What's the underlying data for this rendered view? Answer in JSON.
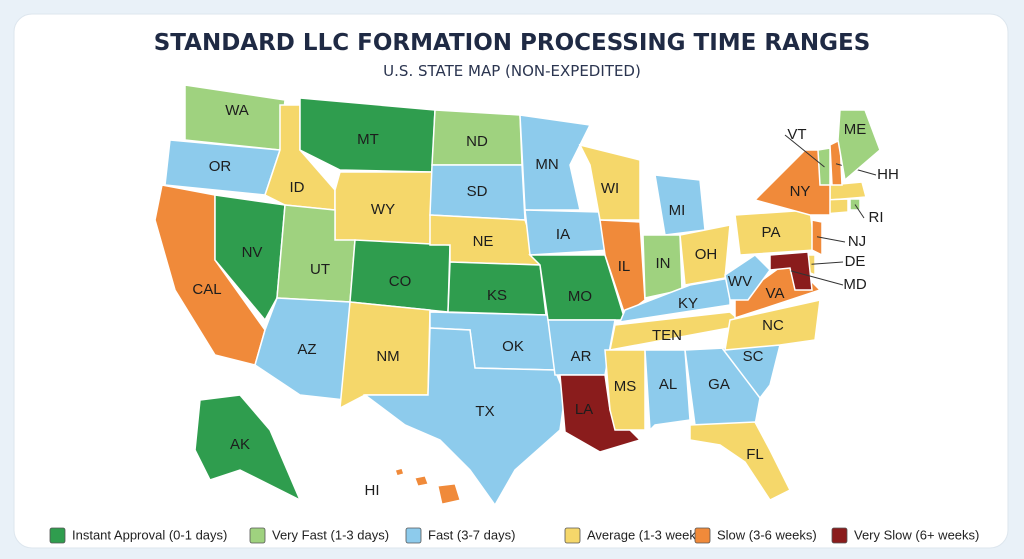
{
  "header": {
    "title": "STANDARD LLC FORMATION PROCESSING TIME RANGES",
    "subtitle": "U.S. STATE MAP (NON-EXPEDITED)"
  },
  "legend": [
    {
      "label": "Instant Approval (0-1 days)",
      "color": "#2f9d4e"
    },
    {
      "label": "Very Fast (1-3 days)",
      "color": "#9fd27f"
    },
    {
      "label": "Fast (3-7 days)",
      "color": "#8dcbec"
    },
    {
      "label": "Average (1-3 weeks)",
      "color": "#f5d76a"
    },
    {
      "label": "Slow (3-6 weeks)",
      "color": "#f08a3a"
    },
    {
      "label": "Very Slow (6+ weeks)",
      "color": "#8a1c1c"
    }
  ],
  "states": [
    {
      "label": "WA",
      "category": 1
    },
    {
      "label": "OR",
      "category": 2
    },
    {
      "label": "CAL",
      "category": 4
    },
    {
      "label": "NV",
      "category": 0
    },
    {
      "label": "ID",
      "category": 3
    },
    {
      "label": "MT",
      "category": 0
    },
    {
      "label": "WY",
      "category": 3
    },
    {
      "label": "UT",
      "category": 1
    },
    {
      "label": "AZ",
      "category": 2
    },
    {
      "label": "CO",
      "category": 0
    },
    {
      "label": "NM",
      "category": 3
    },
    {
      "label": "ND",
      "category": 1
    },
    {
      "label": "SD",
      "category": 2
    },
    {
      "label": "NE",
      "category": 3
    },
    {
      "label": "KS",
      "category": 0
    },
    {
      "label": "OK",
      "category": 2
    },
    {
      "label": "TX",
      "category": 2
    },
    {
      "label": "MN",
      "category": 2
    },
    {
      "label": "IA",
      "category": 2
    },
    {
      "label": "MO",
      "category": 0
    },
    {
      "label": "AR",
      "category": 2
    },
    {
      "label": "LA",
      "category": 5
    },
    {
      "label": "WI",
      "category": 3
    },
    {
      "label": "IL",
      "category": 4
    },
    {
      "label": "MI",
      "category": 2
    },
    {
      "label": "IN",
      "category": 1
    },
    {
      "label": "OH",
      "category": 3
    },
    {
      "label": "KY",
      "category": 2
    },
    {
      "label": "TEN",
      "category": 3
    },
    {
      "label": "MS",
      "category": 3
    },
    {
      "label": "AL",
      "category": 2
    },
    {
      "label": "GA",
      "category": 2
    },
    {
      "label": "FL",
      "category": 3
    },
    {
      "label": "SC",
      "category": 2
    },
    {
      "label": "NC",
      "category": 3
    },
    {
      "label": "VA",
      "category": 4
    },
    {
      "label": "WV",
      "category": 2
    },
    {
      "label": "PA",
      "category": 3
    },
    {
      "label": "NY",
      "category": 4
    },
    {
      "label": "VT",
      "category": 1
    },
    {
      "label": "HH",
      "category": 4
    },
    {
      "label": "ME",
      "category": 1
    },
    {
      "label": "RI",
      "category": 1
    },
    {
      "label": "NJ",
      "category": 4
    },
    {
      "label": "DE",
      "category": 3
    },
    {
      "label": "MD",
      "category": 5
    },
    {
      "label": "AK",
      "category": 0
    },
    {
      "label": "HI",
      "category": 4
    }
  ]
}
